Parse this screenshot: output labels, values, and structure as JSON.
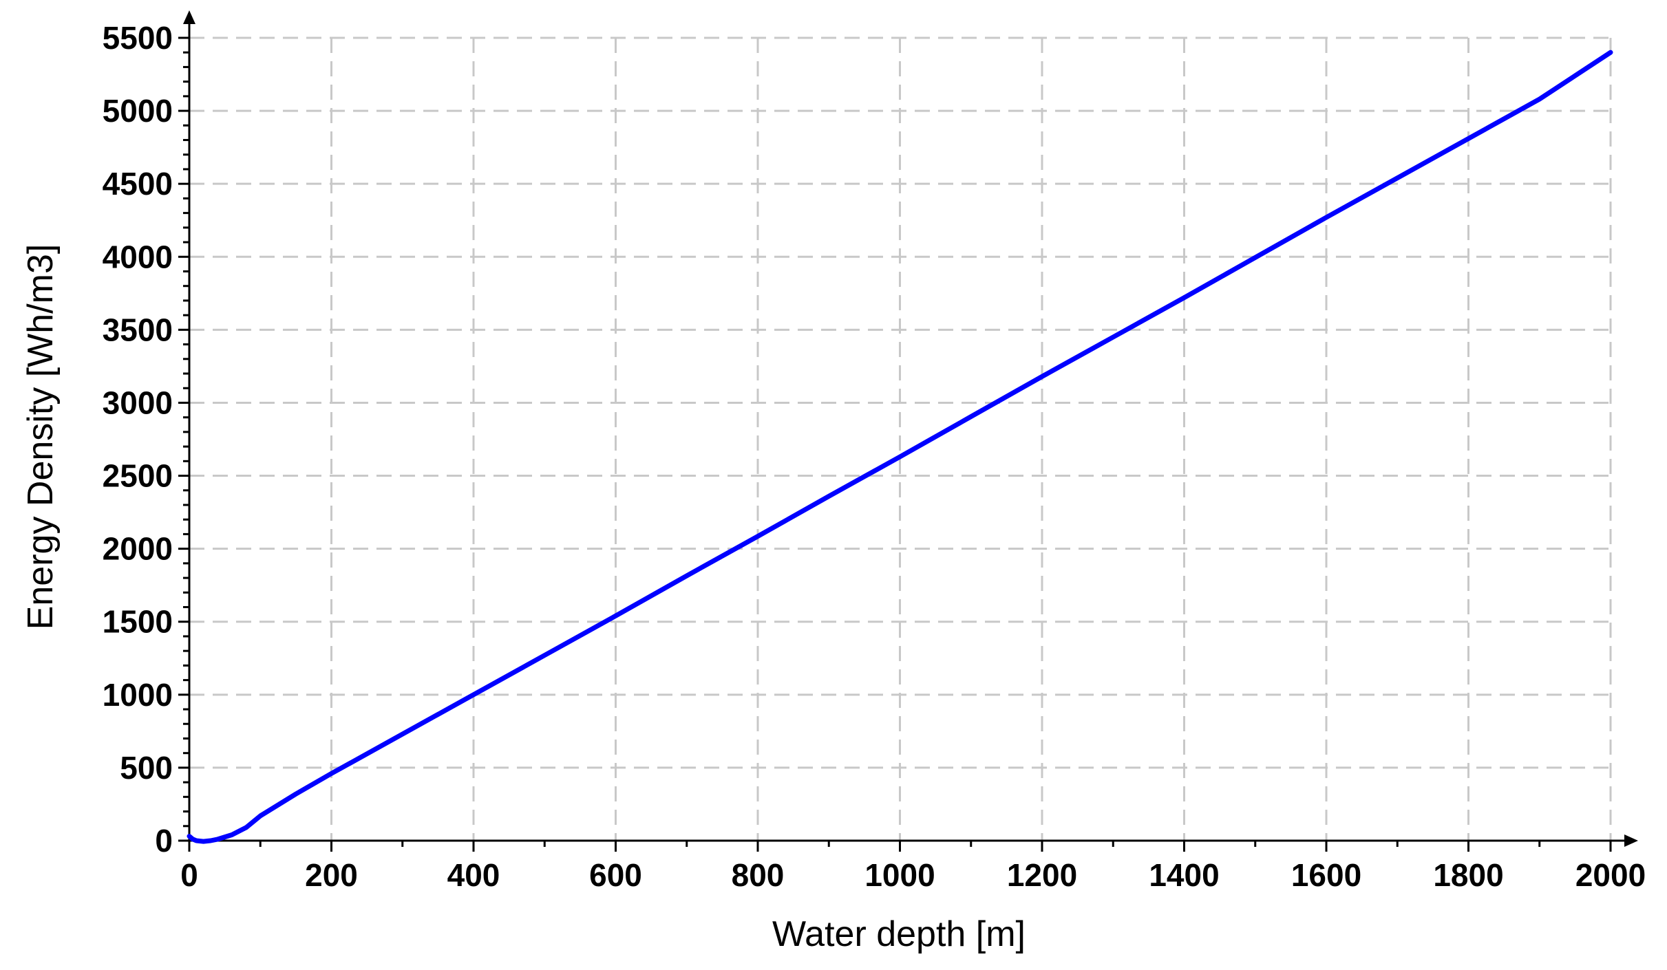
{
  "chart_data": {
    "type": "line",
    "title": "",
    "xlabel": "Water depth [m]",
    "ylabel": "Energy Density [Wh/m3]",
    "xlim": [
      0,
      2000
    ],
    "ylim": [
      0,
      5500
    ],
    "xticks": [
      0,
      200,
      400,
      600,
      800,
      1000,
      1200,
      1400,
      1600,
      1800,
      2000
    ],
    "yticks": [
      0,
      500,
      1000,
      1500,
      2000,
      2500,
      3000,
      3500,
      4000,
      4500,
      5000,
      5500
    ],
    "grid": true,
    "legend": "none",
    "series": [
      {
        "color": "#0000ff",
        "x": [
          0,
          5,
          10,
          20,
          30,
          40,
          60,
          80,
          100,
          150,
          200,
          300,
          400,
          500,
          600,
          700,
          800,
          900,
          1000,
          1100,
          1200,
          1300,
          1400,
          1500,
          1600,
          1700,
          1800,
          1900,
          2000
        ],
        "y": [
          30,
          10,
          0,
          -5,
          0,
          10,
          40,
          90,
          170,
          320,
          460,
          730,
          1000,
          1270,
          1540,
          1815,
          2085,
          2360,
          2630,
          2905,
          3180,
          3450,
          3720,
          3995,
          4270,
          4540,
          4810,
          5080,
          5400
        ]
      }
    ]
  }
}
